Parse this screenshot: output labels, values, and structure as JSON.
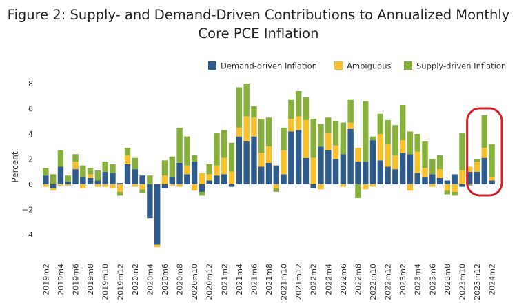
{
  "title": "Figure 2: Supply- and Demand-Driven Contributions to Annualized Monthly Core PCE Inflation",
  "chart_data": {
    "type": "bar",
    "stacked": true,
    "ylabel": "Percent",
    "ylim": [
      -5,
      8
    ],
    "yticks": [
      -4,
      -2,
      0,
      2,
      4,
      6,
      8
    ],
    "grid": false,
    "legend": "top-right",
    "colors": {
      "demand": "#2e5a8c",
      "ambiguous": "#f7c12e",
      "supply": "#86b03b",
      "highlight": "#d9202a"
    },
    "x": [
      "2019m2",
      "2019m3",
      "2019m4",
      "2019m5",
      "2019m6",
      "2019m7",
      "2019m8",
      "2019m9",
      "2019m10",
      "2019m11",
      "2019m12",
      "2020m1",
      "2020m2",
      "2020m3",
      "2020m4",
      "2020m5",
      "2020m6",
      "2020m7",
      "2020m8",
      "2020m9",
      "2020m10",
      "2020m11",
      "2020m12",
      "2021m1",
      "2021m2",
      "2021m3",
      "2021m4",
      "2021m5",
      "2021m6",
      "2021m7",
      "2021m8",
      "2021m9",
      "2021m10",
      "2021m11",
      "2021m12",
      "2022m1",
      "2022m2",
      "2022m3",
      "2022m4",
      "2022m5",
      "2022m6",
      "2022m7",
      "2022m8",
      "2022m9",
      "2022m10",
      "2022m11",
      "2022m12",
      "2023m1",
      "2023m2",
      "2023m3",
      "2023m4",
      "2023m5",
      "2023m6",
      "2023m7",
      "2023m8",
      "2023m9",
      "2023m10",
      "2023m11",
      "2023m12",
      "2024m1",
      "2024m2"
    ],
    "xticklabels": [
      "2019m2",
      "2019m4",
      "2019m6",
      "2019m8",
      "2019m10",
      "2019m12",
      "2020m2",
      "2020m4",
      "2020m6",
      "2020m8",
      "2020m10",
      "2020m12",
      "2021m2",
      "2021m4",
      "2021m6",
      "2021m8",
      "2021m10",
      "2021m12",
      "2022m2",
      "2022m4",
      "2022m6",
      "2022m8",
      "2022m10",
      "2022m12",
      "2023m2",
      "2023m4",
      "2023m6",
      "2023m8",
      "2023m10",
      "2023m12",
      "2024m2"
    ],
    "series": [
      {
        "name": "Demand-driven Inflation",
        "key": "demand",
        "values": [
          0.7,
          -0.3,
          1.4,
          0.2,
          1.2,
          0.6,
          0.5,
          0.3,
          1.0,
          0.9,
          0.1,
          1.6,
          1.2,
          0.7,
          -2.7,
          -4.8,
          -0.3,
          0.6,
          1.7,
          0.8,
          1.8,
          -0.6,
          0.3,
          0.7,
          0.8,
          -0.2,
          3.8,
          3.4,
          3.8,
          1.4,
          1.7,
          1.5,
          0.8,
          4.2,
          4.3,
          2.1,
          -0.3,
          3.0,
          2.7,
          2.0,
          2.4,
          4.4,
          1.8,
          1.8,
          3.5,
          1.9,
          1.4,
          1.2,
          2.5,
          2.4,
          0.9,
          0.6,
          0.8,
          0.5,
          0.3,
          0.8,
          -0.2,
          1.0,
          1.0,
          2.1,
          0.3
        ]
      },
      {
        "name": "Ambiguous",
        "key": "ambiguous",
        "values": [
          -0.2,
          -0.2,
          -0.1,
          -0.1,
          0.6,
          -0.3,
          0.3,
          -0.2,
          -0.2,
          -0.3,
          -0.6,
          0.7,
          -0.2,
          -0.4,
          0.0,
          -0.2,
          0.7,
          -0.1,
          -0.2,
          0.7,
          -0.5,
          0.9,
          0.5,
          0.8,
          1.3,
          1.0,
          0.7,
          2.0,
          1.5,
          1.1,
          1.3,
          -0.3,
          1.9,
          1.0,
          1.1,
          3.0,
          2.1,
          -0.4,
          1.4,
          1.1,
          -0.2,
          0.5,
          1.1,
          -0.4,
          -0.2,
          2.1,
          1.8,
          1.1,
          1.0,
          -0.5,
          1.7,
          0.7,
          -0.2,
          0.7,
          -0.5,
          -0.6,
          1.1,
          0.4,
          0.8,
          0.8,
          0.3
        ]
      },
      {
        "name": "Supply-driven Inflation",
        "key": "supply",
        "values": [
          0.6,
          0.8,
          1.3,
          0.5,
          0.6,
          0.9,
          0.5,
          0.8,
          0.8,
          0.7,
          -0.3,
          0.6,
          0.9,
          -0.3,
          0.7,
          0.0,
          1.2,
          1.6,
          2.8,
          2.3,
          0.5,
          -0.3,
          0.8,
          2.6,
          2.2,
          2.3,
          3.2,
          2.6,
          0.9,
          2.7,
          2.3,
          -0.3,
          1.8,
          1.5,
          2.0,
          1.8,
          3.1,
          1.8,
          1.2,
          1.9,
          2.5,
          1.8,
          -1.1,
          4.8,
          0.3,
          1.6,
          1.9,
          2.4,
          2.8,
          1.8,
          1.4,
          2.1,
          1.2,
          1.1,
          -0.3,
          -0.3,
          3.0,
          -0.1,
          0.2,
          2.6,
          2.6
        ]
      }
    ]
  }
}
